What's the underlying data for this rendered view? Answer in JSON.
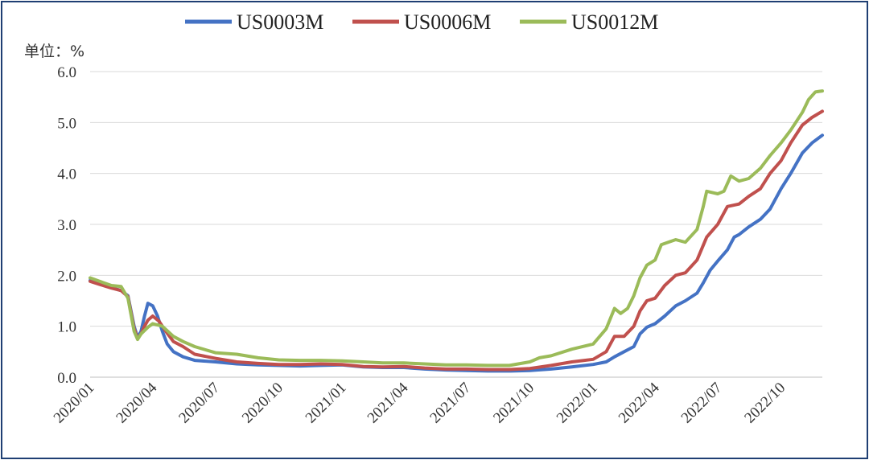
{
  "chart_data": {
    "type": "line",
    "unit_label": "单位：%",
    "ylim": [
      0,
      6
    ],
    "y_ticks": [
      "0.0",
      "1.0",
      "2.0",
      "3.0",
      "4.0",
      "5.0",
      "6.0"
    ],
    "x_range": [
      "2020-01-01",
      "2022-11-30"
    ],
    "x_ticks": [
      "2020/01",
      "2020/04",
      "2020/07",
      "2020/10",
      "2021/01",
      "2021/04",
      "2021/07",
      "2021/10",
      "2022/01",
      "2022/04",
      "2022/07",
      "2022/10"
    ],
    "x_tick_dates": [
      "2020-01-01",
      "2020-04-01",
      "2020-07-01",
      "2020-10-01",
      "2021-01-01",
      "2021-04-01",
      "2021-07-01",
      "2021-10-01",
      "2022-01-01",
      "2022-04-01",
      "2022-07-01",
      "2022-10-01"
    ],
    "grid": true,
    "legend_position": "top",
    "series": [
      {
        "name": "US0003M",
        "color": "#4472c4",
        "points": [
          [
            "2020-01-01",
            1.9
          ],
          [
            "2020-01-15",
            1.84
          ],
          [
            "2020-02-01",
            1.76
          ],
          [
            "2020-02-15",
            1.7
          ],
          [
            "2020-02-25",
            1.6
          ],
          [
            "2020-03-05",
            1.0
          ],
          [
            "2020-03-10",
            0.78
          ],
          [
            "2020-03-15",
            0.9
          ],
          [
            "2020-03-20",
            1.2
          ],
          [
            "2020-03-25",
            1.45
          ],
          [
            "2020-04-01",
            1.4
          ],
          [
            "2020-04-08",
            1.2
          ],
          [
            "2020-04-15",
            0.9
          ],
          [
            "2020-04-22",
            0.65
          ],
          [
            "2020-05-01",
            0.5
          ],
          [
            "2020-05-15",
            0.4
          ],
          [
            "2020-06-01",
            0.33
          ],
          [
            "2020-07-01",
            0.3
          ],
          [
            "2020-08-01",
            0.26
          ],
          [
            "2020-09-01",
            0.24
          ],
          [
            "2020-10-01",
            0.23
          ],
          [
            "2020-11-01",
            0.22
          ],
          [
            "2020-12-01",
            0.23
          ],
          [
            "2021-01-01",
            0.24
          ],
          [
            "2021-02-01",
            0.2
          ],
          [
            "2021-03-01",
            0.19
          ],
          [
            "2021-04-01",
            0.19
          ],
          [
            "2021-05-01",
            0.16
          ],
          [
            "2021-06-01",
            0.14
          ],
          [
            "2021-07-01",
            0.13
          ],
          [
            "2021-08-01",
            0.12
          ],
          [
            "2021-09-01",
            0.12
          ],
          [
            "2021-10-01",
            0.13
          ],
          [
            "2021-11-01",
            0.16
          ],
          [
            "2021-12-01",
            0.2
          ],
          [
            "2022-01-01",
            0.25
          ],
          [
            "2022-01-20",
            0.3
          ],
          [
            "2022-02-01",
            0.4
          ],
          [
            "2022-02-15",
            0.5
          ],
          [
            "2022-03-01",
            0.6
          ],
          [
            "2022-03-10",
            0.85
          ],
          [
            "2022-03-20",
            0.98
          ],
          [
            "2022-04-01",
            1.05
          ],
          [
            "2022-04-15",
            1.2
          ],
          [
            "2022-05-01",
            1.4
          ],
          [
            "2022-05-15",
            1.5
          ],
          [
            "2022-06-01",
            1.65
          ],
          [
            "2022-06-10",
            1.85
          ],
          [
            "2022-06-20",
            2.1
          ],
          [
            "2022-07-01",
            2.28
          ],
          [
            "2022-07-15",
            2.5
          ],
          [
            "2022-07-25",
            2.75
          ],
          [
            "2022-08-01",
            2.8
          ],
          [
            "2022-08-15",
            2.95
          ],
          [
            "2022-09-01",
            3.1
          ],
          [
            "2022-09-15",
            3.3
          ],
          [
            "2022-10-01",
            3.7
          ],
          [
            "2022-10-15",
            4.0
          ],
          [
            "2022-11-01",
            4.4
          ],
          [
            "2022-11-15",
            4.6
          ],
          [
            "2022-11-30",
            4.75
          ]
        ]
      },
      {
        "name": "US0006M",
        "color": "#c0504d",
        "points": [
          [
            "2020-01-01",
            1.88
          ],
          [
            "2020-01-15",
            1.82
          ],
          [
            "2020-02-01",
            1.75
          ],
          [
            "2020-02-15",
            1.7
          ],
          [
            "2020-02-25",
            1.58
          ],
          [
            "2020-03-05",
            0.95
          ],
          [
            "2020-03-10",
            0.76
          ],
          [
            "2020-03-15",
            0.85
          ],
          [
            "2020-03-20",
            1.0
          ],
          [
            "2020-03-25",
            1.12
          ],
          [
            "2020-04-01",
            1.2
          ],
          [
            "2020-04-10",
            1.1
          ],
          [
            "2020-04-20",
            0.9
          ],
          [
            "2020-05-01",
            0.7
          ],
          [
            "2020-05-15",
            0.6
          ],
          [
            "2020-06-01",
            0.45
          ],
          [
            "2020-07-01",
            0.37
          ],
          [
            "2020-08-01",
            0.3
          ],
          [
            "2020-09-01",
            0.27
          ],
          [
            "2020-10-01",
            0.25
          ],
          [
            "2020-11-01",
            0.25
          ],
          [
            "2020-12-01",
            0.26
          ],
          [
            "2021-01-01",
            0.25
          ],
          [
            "2021-02-01",
            0.21
          ],
          [
            "2021-03-01",
            0.2
          ],
          [
            "2021-04-01",
            0.21
          ],
          [
            "2021-05-01",
            0.18
          ],
          [
            "2021-06-01",
            0.16
          ],
          [
            "2021-07-01",
            0.16
          ],
          [
            "2021-08-01",
            0.15
          ],
          [
            "2021-09-01",
            0.15
          ],
          [
            "2021-10-01",
            0.17
          ],
          [
            "2021-11-01",
            0.23
          ],
          [
            "2021-12-01",
            0.3
          ],
          [
            "2022-01-01",
            0.35
          ],
          [
            "2022-01-20",
            0.5
          ],
          [
            "2022-02-01",
            0.8
          ],
          [
            "2022-02-15",
            0.8
          ],
          [
            "2022-03-01",
            1.0
          ],
          [
            "2022-03-10",
            1.3
          ],
          [
            "2022-03-20",
            1.5
          ],
          [
            "2022-04-01",
            1.55
          ],
          [
            "2022-04-15",
            1.8
          ],
          [
            "2022-05-01",
            2.0
          ],
          [
            "2022-05-15",
            2.05
          ],
          [
            "2022-06-01",
            2.3
          ],
          [
            "2022-06-15",
            2.75
          ],
          [
            "2022-07-01",
            3.0
          ],
          [
            "2022-07-15",
            3.35
          ],
          [
            "2022-08-01",
            3.4
          ],
          [
            "2022-08-15",
            3.55
          ],
          [
            "2022-09-01",
            3.7
          ],
          [
            "2022-09-15",
            4.0
          ],
          [
            "2022-10-01",
            4.25
          ],
          [
            "2022-10-15",
            4.6
          ],
          [
            "2022-11-01",
            4.95
          ],
          [
            "2022-11-15",
            5.1
          ],
          [
            "2022-11-30",
            5.22
          ]
        ]
      },
      {
        "name": "US0012M",
        "color": "#9bbb59",
        "points": [
          [
            "2020-01-01",
            1.95
          ],
          [
            "2020-01-15",
            1.88
          ],
          [
            "2020-02-01",
            1.8
          ],
          [
            "2020-02-15",
            1.78
          ],
          [
            "2020-02-25",
            1.55
          ],
          [
            "2020-03-05",
            0.9
          ],
          [
            "2020-03-10",
            0.74
          ],
          [
            "2020-03-15",
            0.85
          ],
          [
            "2020-03-25",
            0.98
          ],
          [
            "2020-04-01",
            1.05
          ],
          [
            "2020-04-15",
            1.0
          ],
          [
            "2020-05-01",
            0.8
          ],
          [
            "2020-05-15",
            0.7
          ],
          [
            "2020-06-01",
            0.6
          ],
          [
            "2020-07-01",
            0.48
          ],
          [
            "2020-08-01",
            0.45
          ],
          [
            "2020-09-01",
            0.38
          ],
          [
            "2020-10-01",
            0.34
          ],
          [
            "2020-11-01",
            0.33
          ],
          [
            "2020-12-01",
            0.33
          ],
          [
            "2021-01-01",
            0.32
          ],
          [
            "2021-02-01",
            0.3
          ],
          [
            "2021-03-01",
            0.28
          ],
          [
            "2021-04-01",
            0.28
          ],
          [
            "2021-05-01",
            0.26
          ],
          [
            "2021-06-01",
            0.24
          ],
          [
            "2021-07-01",
            0.24
          ],
          [
            "2021-08-01",
            0.23
          ],
          [
            "2021-09-01",
            0.23
          ],
          [
            "2021-10-01",
            0.3
          ],
          [
            "2021-10-15",
            0.38
          ],
          [
            "2021-11-01",
            0.42
          ],
          [
            "2021-12-01",
            0.55
          ],
          [
            "2022-01-01",
            0.65
          ],
          [
            "2022-01-20",
            0.95
          ],
          [
            "2022-02-01",
            1.35
          ],
          [
            "2022-02-10",
            1.25
          ],
          [
            "2022-02-20",
            1.35
          ],
          [
            "2022-03-01",
            1.6
          ],
          [
            "2022-03-10",
            1.95
          ],
          [
            "2022-03-20",
            2.2
          ],
          [
            "2022-04-01",
            2.3
          ],
          [
            "2022-04-10",
            2.6
          ],
          [
            "2022-04-20",
            2.65
          ],
          [
            "2022-05-01",
            2.7
          ],
          [
            "2022-05-15",
            2.65
          ],
          [
            "2022-06-01",
            2.9
          ],
          [
            "2022-06-10",
            3.35
          ],
          [
            "2022-06-15",
            3.65
          ],
          [
            "2022-07-01",
            3.6
          ],
          [
            "2022-07-10",
            3.65
          ],
          [
            "2022-07-20",
            3.95
          ],
          [
            "2022-08-01",
            3.85
          ],
          [
            "2022-08-15",
            3.9
          ],
          [
            "2022-09-01",
            4.1
          ],
          [
            "2022-09-15",
            4.35
          ],
          [
            "2022-10-01",
            4.6
          ],
          [
            "2022-10-15",
            4.85
          ],
          [
            "2022-11-01",
            5.2
          ],
          [
            "2022-11-10",
            5.45
          ],
          [
            "2022-11-20",
            5.6
          ],
          [
            "2022-11-30",
            5.62
          ]
        ]
      }
    ]
  }
}
